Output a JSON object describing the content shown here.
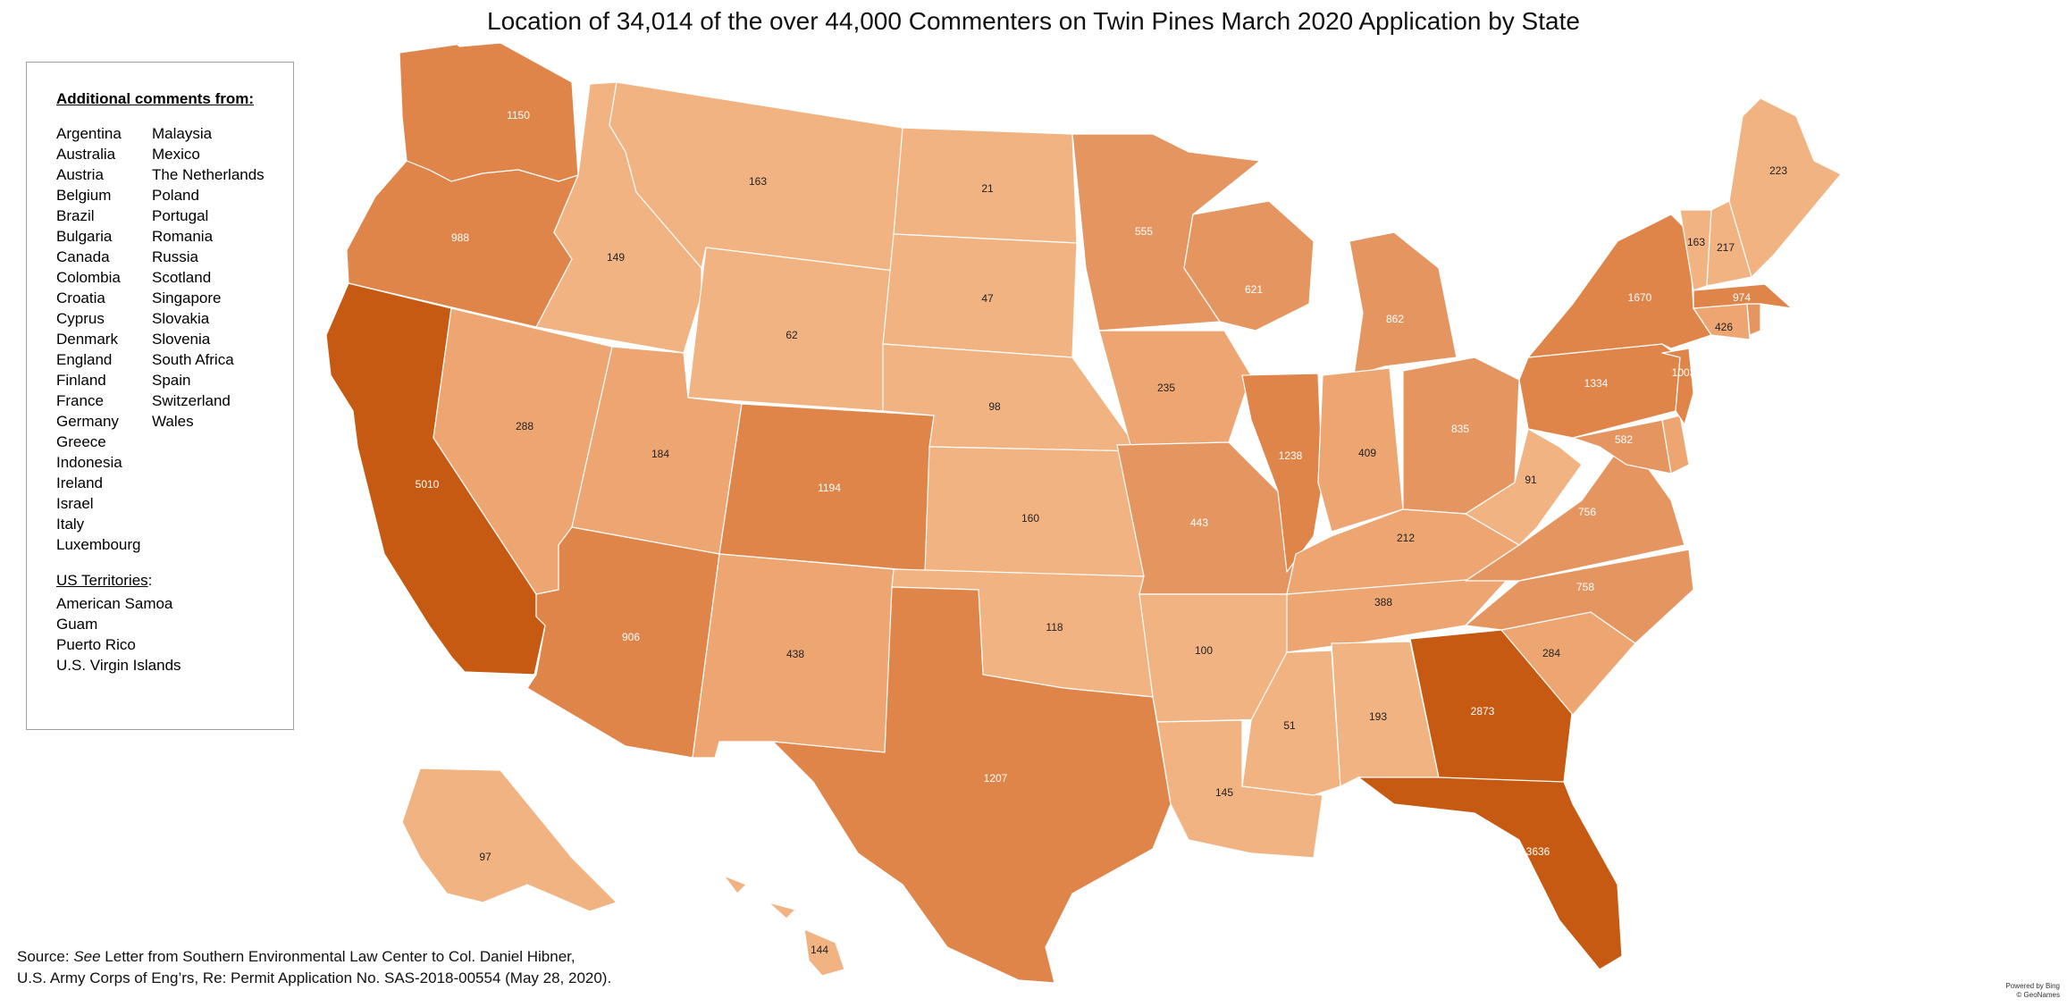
{
  "title": "Location of 34,014 of the over 44,000 Commenters on Twin Pines March 2020 Application by State",
  "legend": {
    "heading": "Additional comments from:",
    "countries_col1": [
      "Argentina",
      "Australia",
      "Austria",
      "Belgium",
      "Brazil",
      "Bulgaria",
      "Canada",
      "Colombia",
      "Croatia",
      "Cyprus",
      "Denmark",
      "England",
      "Finland",
      "France",
      "Germany",
      "Greece",
      "Indonesia",
      "Ireland",
      "Israel",
      "Italy",
      "Luxembourg"
    ],
    "countries_col2": [
      "Malaysia",
      "Mexico",
      "The Netherlands",
      "Poland",
      "Portugal",
      "Romania",
      "Russia",
      "Scotland",
      "Singapore",
      "Slovakia",
      "Slovenia",
      "South Africa",
      "Spain",
      "Switzerland",
      "Wales"
    ],
    "territories_heading": "US Territories",
    "territories_suffix": ":",
    "territories": [
      "American Samoa",
      "Guam",
      "Puerto Rico",
      "U.S. Virgin Islands"
    ]
  },
  "source": {
    "prefix": "Source: ",
    "see": "See",
    "line1_rest": " Letter from Southern Environmental Law Center to Col. Daniel Hibner,",
    "line2": "U.S. Army Corps of Eng’rs, Re: Permit Application No. SAS-2018-00554 (May 28, 2020)."
  },
  "credit": {
    "line1": "Powered by Bing",
    "line2": "© GeoNames"
  },
  "colors": {
    "lightest": "#f2b382",
    "light": "#eda672",
    "medium": "#e59560",
    "strong": "#df8549",
    "dark": "#c65a12"
  },
  "states": [
    {
      "id": "WA",
      "value": "1150",
      "tier": "strong"
    },
    {
      "id": "OR",
      "value": "988",
      "tier": "strong"
    },
    {
      "id": "CA",
      "value": "5010",
      "tier": "dark"
    },
    {
      "id": "ID",
      "value": "149",
      "tier": "lightest"
    },
    {
      "id": "NV",
      "value": "288",
      "tier": "light"
    },
    {
      "id": "MT",
      "value": "163",
      "tier": "lightest"
    },
    {
      "id": "WY",
      "value": "62",
      "tier": "lightest"
    },
    {
      "id": "UT",
      "value": "184",
      "tier": "light"
    },
    {
      "id": "AZ",
      "value": "906",
      "tier": "strong"
    },
    {
      "id": "CO",
      "value": "1194",
      "tier": "strong"
    },
    {
      "id": "NM",
      "value": "438",
      "tier": "light"
    },
    {
      "id": "ND",
      "value": "21",
      "tier": "lightest"
    },
    {
      "id": "SD",
      "value": "47",
      "tier": "lightest"
    },
    {
      "id": "NE",
      "value": "98",
      "tier": "lightest"
    },
    {
      "id": "KS",
      "value": "160",
      "tier": "lightest"
    },
    {
      "id": "OK",
      "value": "118",
      "tier": "lightest"
    },
    {
      "id": "TX",
      "value": "1207",
      "tier": "strong"
    },
    {
      "id": "MN",
      "value": "555",
      "tier": "medium"
    },
    {
      "id": "IA",
      "value": "235",
      "tier": "light"
    },
    {
      "id": "MO",
      "value": "443",
      "tier": "medium"
    },
    {
      "id": "AR",
      "value": "100",
      "tier": "lightest"
    },
    {
      "id": "LA",
      "value": "145",
      "tier": "lightest"
    },
    {
      "id": "WI",
      "value": "621",
      "tier": "medium"
    },
    {
      "id": "IL",
      "value": "1238",
      "tier": "strong"
    },
    {
      "id": "MI",
      "value": "862",
      "tier": "medium"
    },
    {
      "id": "IN",
      "value": "409",
      "tier": "light"
    },
    {
      "id": "OH",
      "value": "835",
      "tier": "medium"
    },
    {
      "id": "KY",
      "value": "212",
      "tier": "light"
    },
    {
      "id": "TN",
      "value": "388",
      "tier": "light"
    },
    {
      "id": "MS",
      "value": "51",
      "tier": "lightest"
    },
    {
      "id": "AL",
      "value": "193",
      "tier": "lightest"
    },
    {
      "id": "GA",
      "value": "2873",
      "tier": "dark"
    },
    {
      "id": "FL",
      "value": "3636",
      "tier": "dark"
    },
    {
      "id": "SC",
      "value": "284",
      "tier": "light"
    },
    {
      "id": "NC",
      "value": "758",
      "tier": "medium"
    },
    {
      "id": "VA",
      "value": "756",
      "tier": "medium"
    },
    {
      "id": "WV",
      "value": "91",
      "tier": "lightest"
    },
    {
      "id": "MD",
      "value": "582",
      "tier": "medium"
    },
    {
      "id": "DE",
      "value": "",
      "tier": "light"
    },
    {
      "id": "PA",
      "value": "1334",
      "tier": "strong"
    },
    {
      "id": "NJ",
      "value": "1003",
      "tier": "strong"
    },
    {
      "id": "NY",
      "value": "1670",
      "tier": "strong"
    },
    {
      "id": "CT",
      "value": "426",
      "tier": "light"
    },
    {
      "id": "RI",
      "value": "",
      "tier": "medium"
    },
    {
      "id": "MA",
      "value": "974",
      "tier": "strong"
    },
    {
      "id": "VT",
      "value": "163",
      "tier": "lightest"
    },
    {
      "id": "NH",
      "value": "217",
      "tier": "lightest"
    },
    {
      "id": "ME",
      "value": "223",
      "tier": "lightest"
    },
    {
      "id": "AK",
      "value": "97",
      "tier": "lightest"
    },
    {
      "id": "HI",
      "value": "144",
      "tier": "lightest"
    }
  ]
}
